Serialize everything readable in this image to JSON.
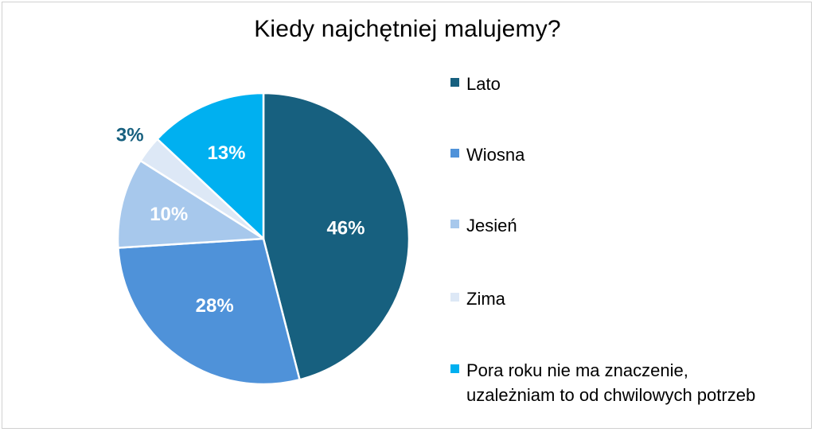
{
  "chart_data": {
    "type": "pie",
    "title": "Kiedy najchętniej malujemy?",
    "legend_position": "right",
    "slices": [
      {
        "label": "Lato",
        "value": 46,
        "display": "46%",
        "color": "#17607f"
      },
      {
        "label": "Wiosna",
        "value": 28,
        "display": "28%",
        "color": "#4f92d9"
      },
      {
        "label": "Jesień",
        "value": 10,
        "display": "10%",
        "color": "#a7c8ec"
      },
      {
        "label": "Zima",
        "value": 3,
        "display": "3%",
        "color": "#dde8f6"
      },
      {
        "label": "Pora roku nie ma znaczenie,\nuzależniam to od chwilowych potrzeb",
        "value": 13,
        "display": "13%",
        "color": "#00b0f0"
      }
    ]
  }
}
